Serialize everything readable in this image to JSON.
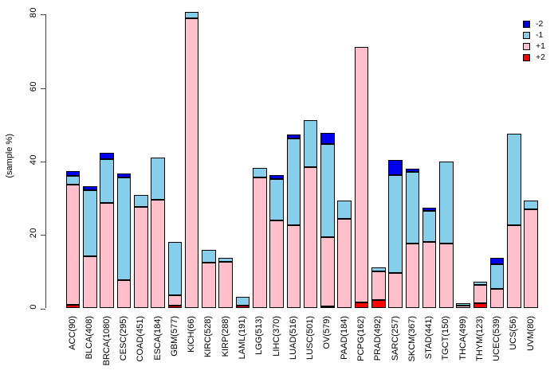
{
  "chart_data": {
    "type": "bar",
    "stacked": true,
    "title": "",
    "xlabel": "",
    "ylabel": "(sample %)",
    "ylim": [
      0,
      80
    ],
    "yticks": [
      0,
      20,
      40,
      60,
      80
    ],
    "grid": false,
    "legend_position": "top-right",
    "legend_order": [
      "-2",
      "-1",
      "+1",
      "+2"
    ],
    "stack_order_bottom_to_top": [
      "+2",
      "+1",
      "-1",
      "-2"
    ],
    "categories": [
      "ACC(90)",
      "BLCA(408)",
      "BRCA(1080)",
      "CESC(295)",
      "COAD(451)",
      "ESCA(184)",
      "GBM(577)",
      "KICH(66)",
      "KIRC(528)",
      "KIRP(288)",
      "LAML(191)",
      "LGG(513)",
      "LIHC(370)",
      "LUAD(516)",
      "LUSC(501)",
      "OV(579)",
      "PAAD(184)",
      "PCPG(162)",
      "PRAD(492)",
      "SARC(257)",
      "SKCM(367)",
      "STAD(441)",
      "TGCT(150)",
      "THCA(499)",
      "THYM(123)",
      "UCEC(539)",
      "UCS(56)",
      "UVM(80)"
    ],
    "series": [
      {
        "name": "-2",
        "color": "#0000EE",
        "values": [
          1.3,
          1.1,
          1.8,
          1.1,
          0,
          0,
          0,
          0,
          0,
          0,
          0,
          0,
          1.0,
          1.1,
          0,
          3.0,
          0,
          0,
          0,
          4.0,
          0.9,
          0.9,
          0,
          0,
          0,
          1.6,
          0,
          0
        ]
      },
      {
        "name": "-1",
        "color": "#87CEEB",
        "values": [
          2.4,
          17.8,
          11.9,
          27.9,
          3.2,
          11.6,
          14.6,
          1.8,
          3.4,
          1.1,
          2.4,
          2.6,
          11.3,
          23.5,
          12.8,
          25.4,
          5.1,
          0,
          1.0,
          26.7,
          19.5,
          8.3,
          22.4,
          0.7,
          0.9,
          6.8,
          24.8,
          2.5
        ]
      },
      {
        "name": "+1",
        "color": "#FFC0CB",
        "values": [
          32.7,
          14.3,
          28.7,
          7.7,
          27.7,
          29.5,
          2.9,
          79.0,
          12.5,
          12.6,
          0,
          35.6,
          24.0,
          22.7,
          38.4,
          18.8,
          24.3,
          69.5,
          7.9,
          9.7,
          17.7,
          18.2,
          17.6,
          0.8,
          4.9,
          5.3,
          22.7,
          26.9
        ]
      },
      {
        "name": "+2",
        "color": "#FF0000",
        "values": [
          1.0,
          0,
          0,
          0,
          0,
          0,
          0.7,
          0,
          0,
          0,
          0.7,
          0,
          0,
          0,
          0,
          0.5,
          0,
          1.6,
          2.2,
          0,
          0,
          0,
          0,
          0,
          1.4,
          0,
          0,
          0
        ]
      }
    ]
  },
  "layout_colors": {
    "axis": "#444444",
    "bar_border": "#000000",
    "text": "#000000",
    "background": "#ffffff"
  }
}
